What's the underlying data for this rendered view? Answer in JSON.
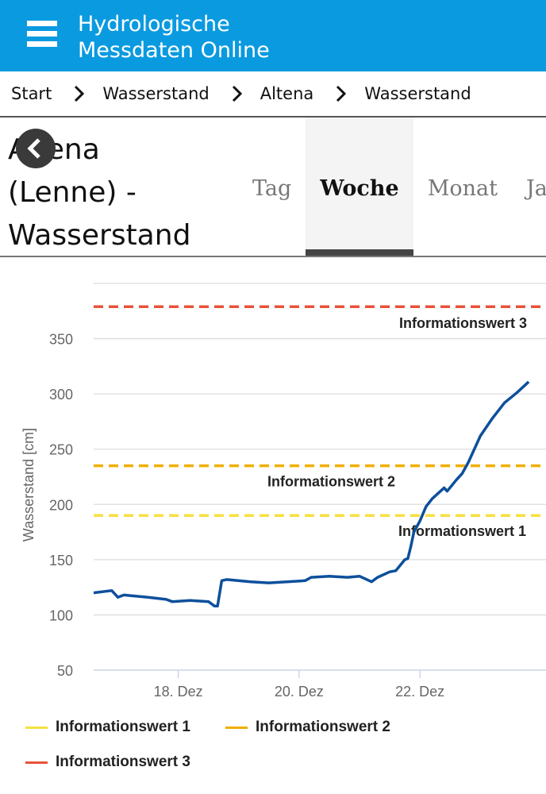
{
  "header": {
    "title_line1": "Hydrologische",
    "title_line2": "Messdaten Online"
  },
  "breadcrumb": [
    "Start",
    "Wasserstand",
    "Altena",
    "Wasserstand"
  ],
  "page": {
    "title_line1": "Altena",
    "title_line2": "(Lenne) -",
    "title_line3": "Wasserstand"
  },
  "tabs": [
    {
      "label": "Tag",
      "active": false
    },
    {
      "label": "Woche",
      "active": true
    },
    {
      "label": "Monat",
      "active": false
    },
    {
      "label": "Jahr",
      "active": false
    }
  ],
  "colors": {
    "header": "#0a9ae0",
    "series": "#0d4f9c",
    "iw1": "#f7e040",
    "iw2": "#f0b000",
    "iw3": "#e8533a"
  },
  "chart_data": {
    "type": "line",
    "ylabel": "Wasserstand [cm]",
    "xlabel": "",
    "ylim": [
      50,
      400
    ],
    "yticks": [
      50,
      100,
      150,
      200,
      250,
      300,
      350
    ],
    "xlim": [
      16.6,
      23.85
    ],
    "xticks": [
      {
        "value": 18,
        "label": "18. Dez"
      },
      {
        "value": 20,
        "label": "20. Dez"
      },
      {
        "value": 22,
        "label": "22. Dez"
      }
    ],
    "thresholds": [
      {
        "name": "Informationswert 1",
        "value": 190,
        "color": "#f7e040"
      },
      {
        "name": "Informationswert 2",
        "value": 235,
        "color": "#f0b000"
      },
      {
        "name": "Informationswert 3",
        "value": 379,
        "color": "#e8533a"
      }
    ],
    "series": [
      {
        "name": "Wasserstand",
        "x": [
          16.6,
          16.9,
          17.0,
          17.1,
          17.5,
          17.8,
          17.9,
          18.2,
          18.5,
          18.6,
          18.65,
          18.72,
          18.8,
          19.2,
          19.5,
          19.8,
          20.1,
          20.2,
          20.5,
          20.8,
          21.0,
          21.2,
          21.3,
          21.5,
          21.6,
          21.75,
          21.8,
          21.85,
          21.9,
          22.0,
          22.1,
          22.2,
          22.4,
          22.45,
          22.6,
          22.7,
          22.8,
          23.0,
          23.2,
          23.4,
          23.6,
          23.8
        ],
        "values": [
          120,
          122,
          116,
          118,
          116,
          114,
          112,
          113,
          112,
          108,
          108,
          131,
          132,
          130,
          129,
          130,
          131,
          134,
          135,
          134,
          135,
          130,
          134,
          139,
          140,
          150,
          151,
          162,
          175,
          185,
          198,
          205,
          215,
          212,
          222,
          228,
          238,
          262,
          278,
          292,
          301,
          311
        ]
      }
    ]
  }
}
